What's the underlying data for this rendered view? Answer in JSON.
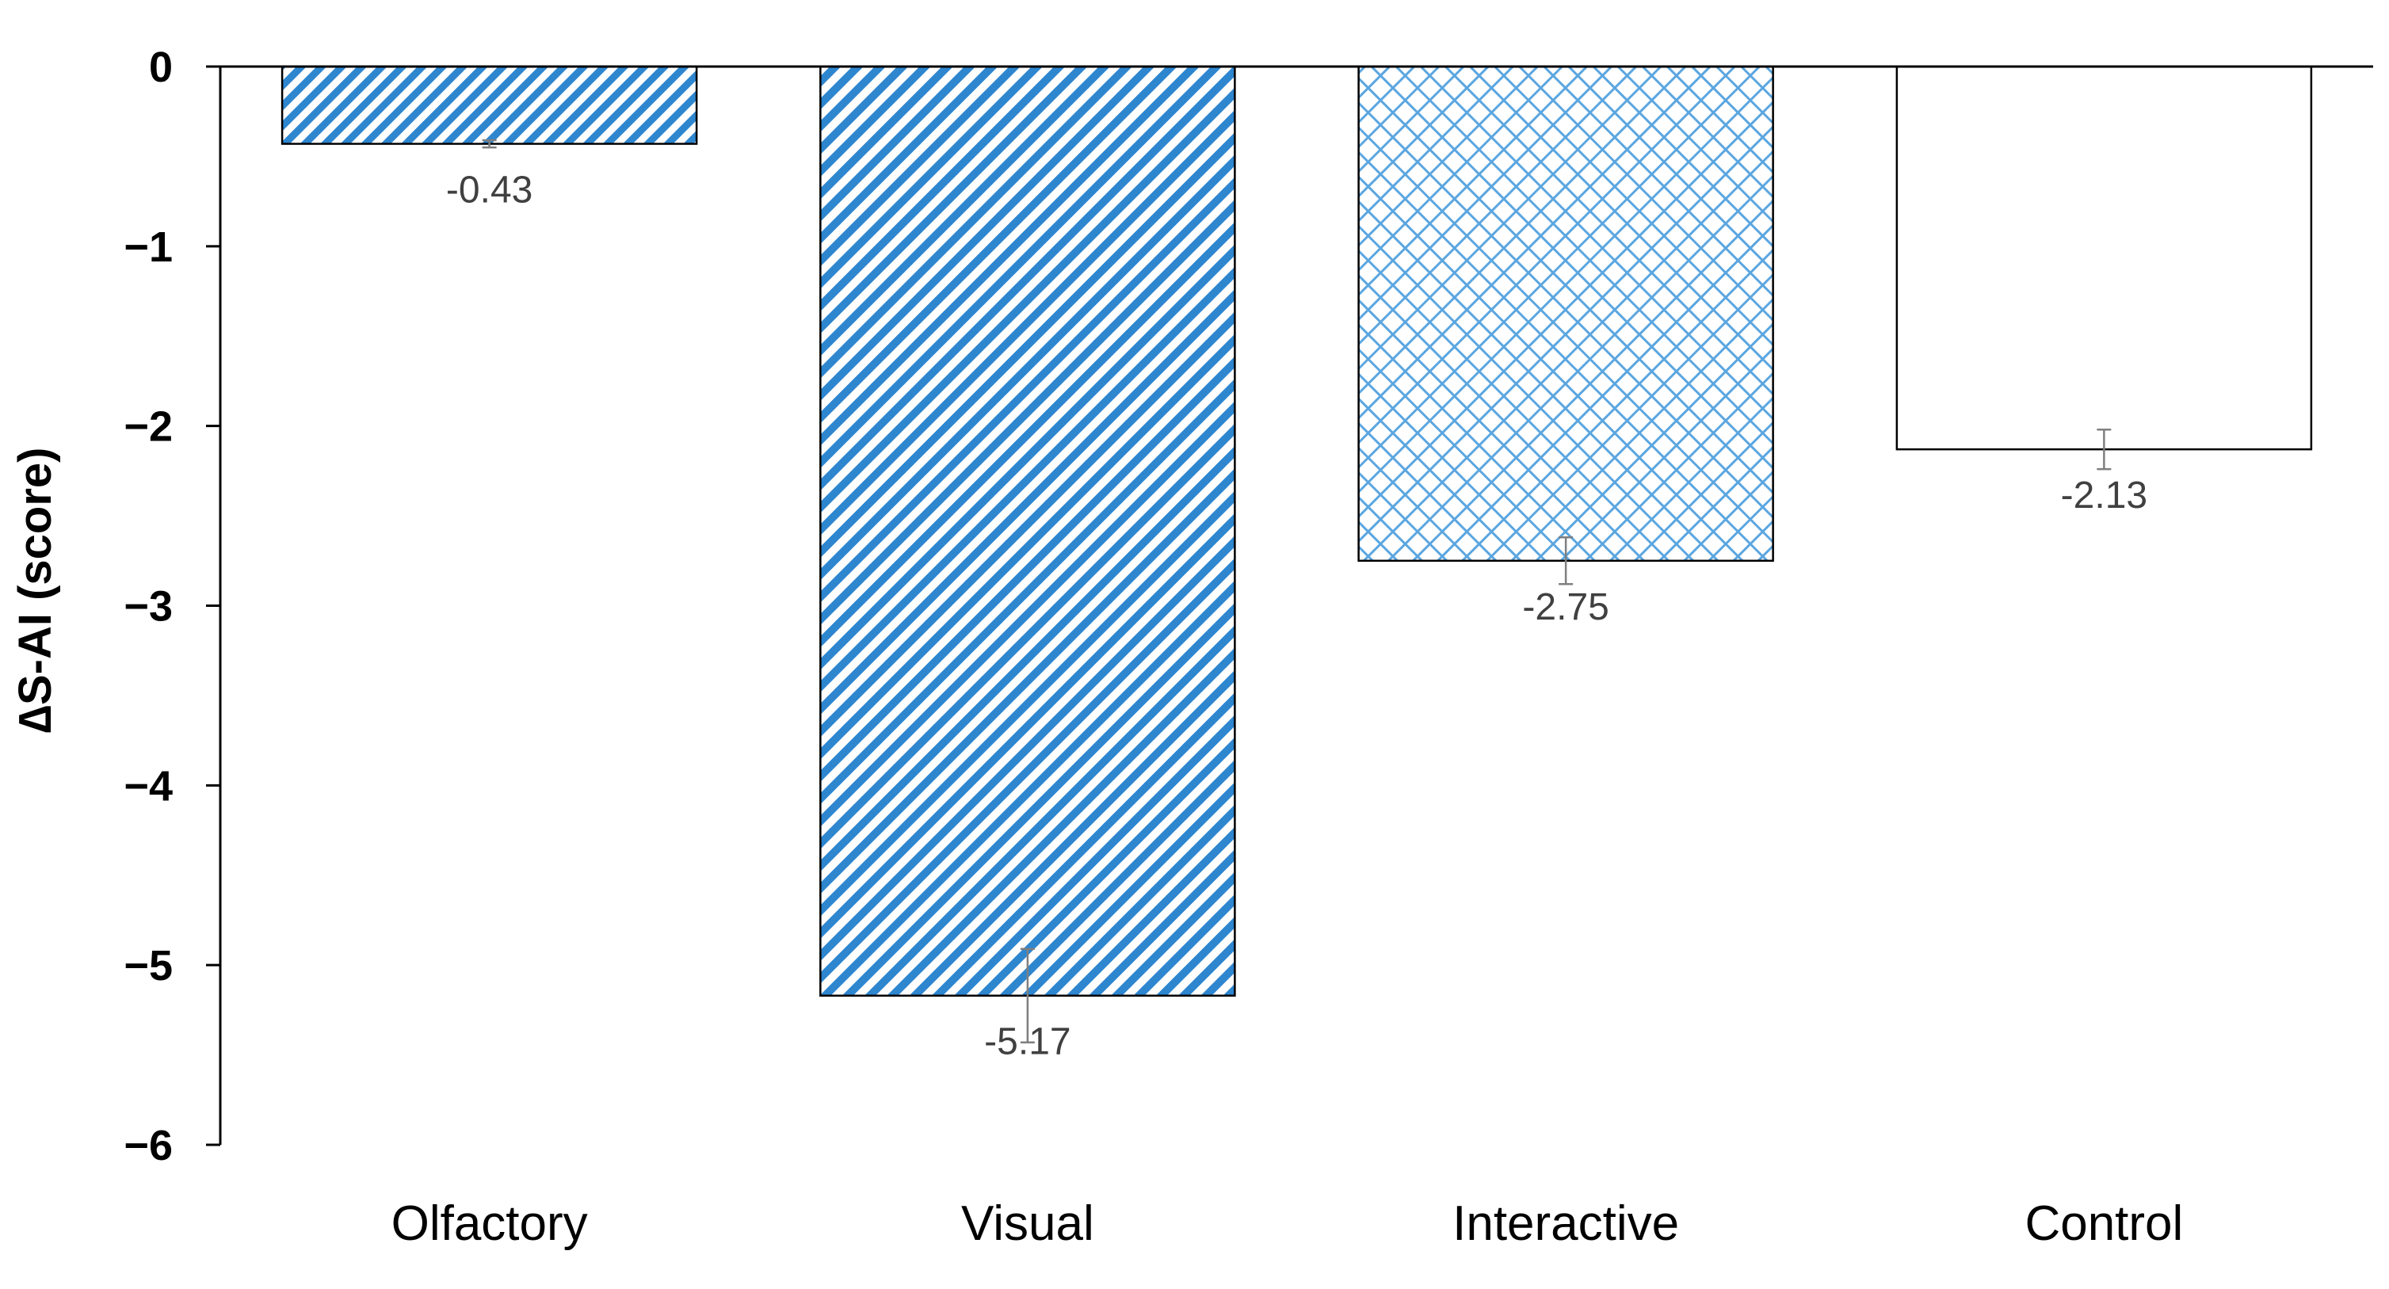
{
  "chart_data": {
    "type": "bar",
    "title": "",
    "xlabel": "",
    "ylabel": "∆S-AI  (score)",
    "ylim": [
      -6,
      0
    ],
    "yticks": [
      0,
      -1,
      -2,
      -3,
      -4,
      -5,
      -6
    ],
    "ytick_labels": [
      "0",
      "−1",
      "−2",
      "−3",
      "−4",
      "−5",
      "−6"
    ],
    "grid": false,
    "legend": "none",
    "categories": [
      "Olfactory",
      "Visual",
      "Interactive",
      "Control"
    ],
    "values": [
      -0.43,
      -5.17,
      -2.75,
      -2.13
    ],
    "data_labels": [
      "-0.43",
      "-5.17",
      "-2.75",
      "-2.13"
    ],
    "error_bars": [
      0.02,
      0.26,
      0.13,
      0.11
    ],
    "bar_fills": [
      "diagonal-hatch-dense",
      "diagonal-hatch",
      "crosshatch",
      "none"
    ],
    "colors": {
      "hatch": "#2E86CF",
      "crosshatch": "#5BA6E0",
      "bar_outline": "#000000",
      "axis": "#000000",
      "error_bar": "#7F7F7F",
      "data_label": "#404040"
    }
  }
}
